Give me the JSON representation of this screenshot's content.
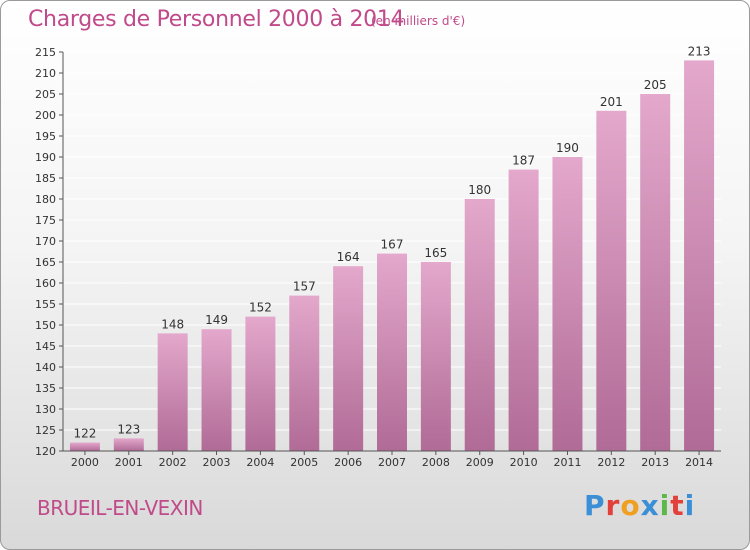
{
  "header": {
    "title": "Charges de Personnel 2000 à 2014",
    "subtitle": "(en milliers d'€)"
  },
  "footer": {
    "commune": "BRUEIL-EN-VEXIN",
    "logo": "Proxiti",
    "logo_colors": [
      "#3a8fd6",
      "#e2403a",
      "#f0a020",
      "#3a8fd6",
      "#5cb84a",
      "#e2403a",
      "#3a8fd6"
    ]
  },
  "colors": {
    "bar_top": "#e4a8cc",
    "bar_bottom": "#b06b96",
    "accent": "#c04a8a"
  },
  "chart_data": {
    "type": "bar",
    "categories": [
      "2000",
      "2001",
      "2002",
      "2003",
      "2004",
      "2005",
      "2006",
      "2007",
      "2008",
      "2009",
      "2010",
      "2011",
      "2012",
      "2013",
      "2014"
    ],
    "values": [
      122,
      123,
      148,
      149,
      152,
      157,
      164,
      167,
      165,
      180,
      187,
      190,
      201,
      205,
      213
    ],
    "data_labels": [
      "122",
      "123",
      "148",
      "149",
      "152",
      "157",
      "164",
      "167",
      "165",
      "180",
      "187",
      "190",
      "201",
      "205",
      "213"
    ],
    "ylim": [
      120,
      215
    ],
    "yticks": [
      120,
      125,
      130,
      135,
      140,
      145,
      150,
      155,
      160,
      165,
      170,
      175,
      180,
      185,
      190,
      195,
      200,
      205,
      210,
      215
    ],
    "grid": true,
    "legend": "none"
  }
}
